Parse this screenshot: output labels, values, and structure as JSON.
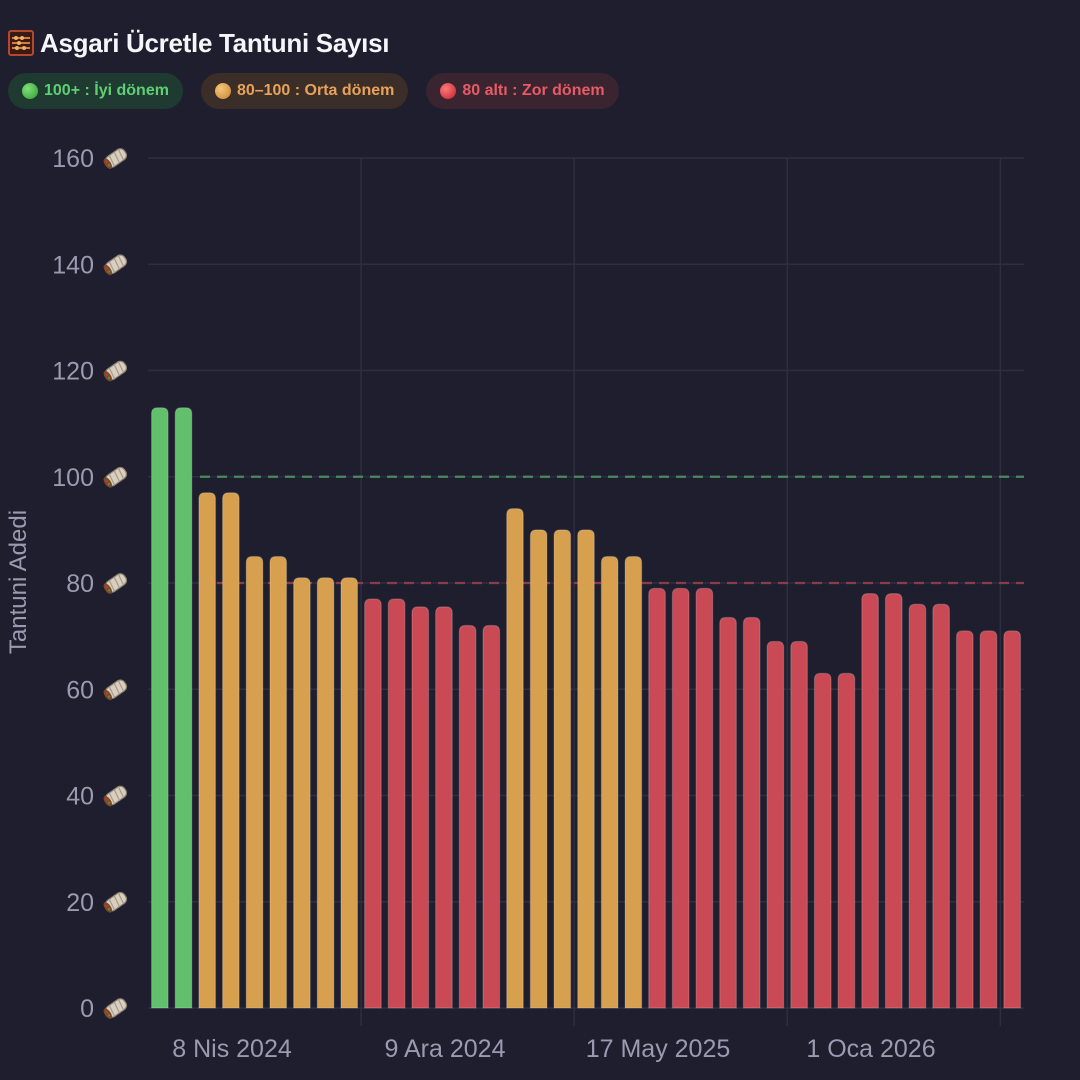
{
  "header": {
    "icon": "abacus-icon",
    "title": "Asgari Ücretle Tantuni Sayısı"
  },
  "legend": [
    {
      "icon": "green-circle-icon",
      "label": "100+ : İyi dönem",
      "color": "#5fcf73"
    },
    {
      "icon": "orange-circle-icon",
      "label": "80–100 : Orta dönem",
      "color": "#e8a25a"
    },
    {
      "icon": "red-circle-icon",
      "label": "80 altı : Zor dönem",
      "color": "#e85a66"
    }
  ],
  "colors": {
    "good": "#62c06d",
    "mid": "#d7a04f",
    "bad": "#c94a55",
    "grid": "#2e2e42",
    "good_line": "#4a8a5a",
    "bad_line": "#8a3c48"
  },
  "chart_data": {
    "type": "bar",
    "title": "Asgari Ücretle Tantuni Sayısı",
    "xlabel": "",
    "ylabel": "Tantuni Adedi",
    "ylim": [
      0,
      160
    ],
    "yticks": [
      0,
      20,
      40,
      60,
      80,
      100,
      120,
      140,
      160
    ],
    "ytick_suffix_icon": "tantuni-wrap-icon",
    "xtick_labels": [
      "8 Nis 2024",
      "9 Ara 2024",
      "17 May 2025",
      "1 Oca 2026"
    ],
    "reference_lines": [
      {
        "value": 100,
        "style": "dashed",
        "color": "#4a8a5a"
      },
      {
        "value": 80,
        "style": "dashed",
        "color": "#8a3c48"
      }
    ],
    "thresholds": {
      "good_min": 100,
      "mid_min": 80
    },
    "values": [
      113,
      113,
      97,
      97,
      85,
      85,
      81,
      81,
      81,
      77,
      77,
      75.5,
      75.5,
      72,
      72,
      94,
      90,
      90,
      90,
      85,
      85,
      79,
      79,
      79,
      73.5,
      73.5,
      69,
      69,
      63,
      63,
      78,
      78,
      76,
      76,
      71,
      71,
      71
    ],
    "grid": true
  }
}
